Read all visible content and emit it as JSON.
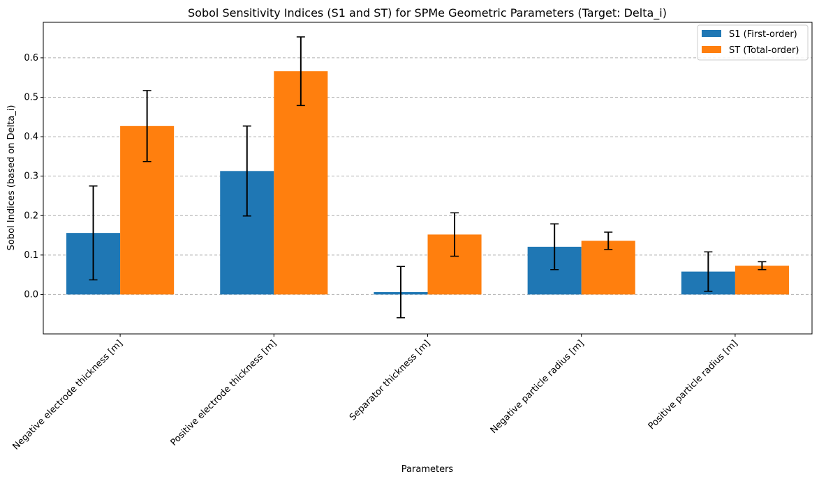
{
  "chart_data": {
    "type": "bar",
    "title": "Sobol Sensitivity Indices (S1 and ST) for SPMe Geometric Parameters (Target: Delta_i)",
    "xlabel": "Parameters",
    "ylabel": "Sobol Indices (based on Delta_i)",
    "ylim": [
      -0.1,
      0.69
    ],
    "yticks": [
      "0.0",
      "0.1",
      "0.2",
      "0.3",
      "0.4",
      "0.5",
      "0.6"
    ],
    "grid": "y-dashed",
    "legend_position": "top-right",
    "categories": [
      "Negative electrode thickness [m]",
      "Positive electrode thickness [m]",
      "Separator thickness [m]",
      "Negative particle radius [m]",
      "Positive particle radius [m]"
    ],
    "series": [
      {
        "name": "S1 (First-order)",
        "color": "#1f77b4",
        "values": [
          0.156,
          0.313,
          0.006,
          0.121,
          0.058
        ],
        "errors": [
          0.119,
          0.114,
          0.065,
          0.058,
          0.05
        ]
      },
      {
        "name": "ST (Total-order)",
        "color": "#ff7f0e",
        "values": [
          0.427,
          0.566,
          0.152,
          0.136,
          0.073
        ],
        "errors": [
          0.09,
          0.087,
          0.055,
          0.022,
          0.01
        ]
      }
    ]
  }
}
